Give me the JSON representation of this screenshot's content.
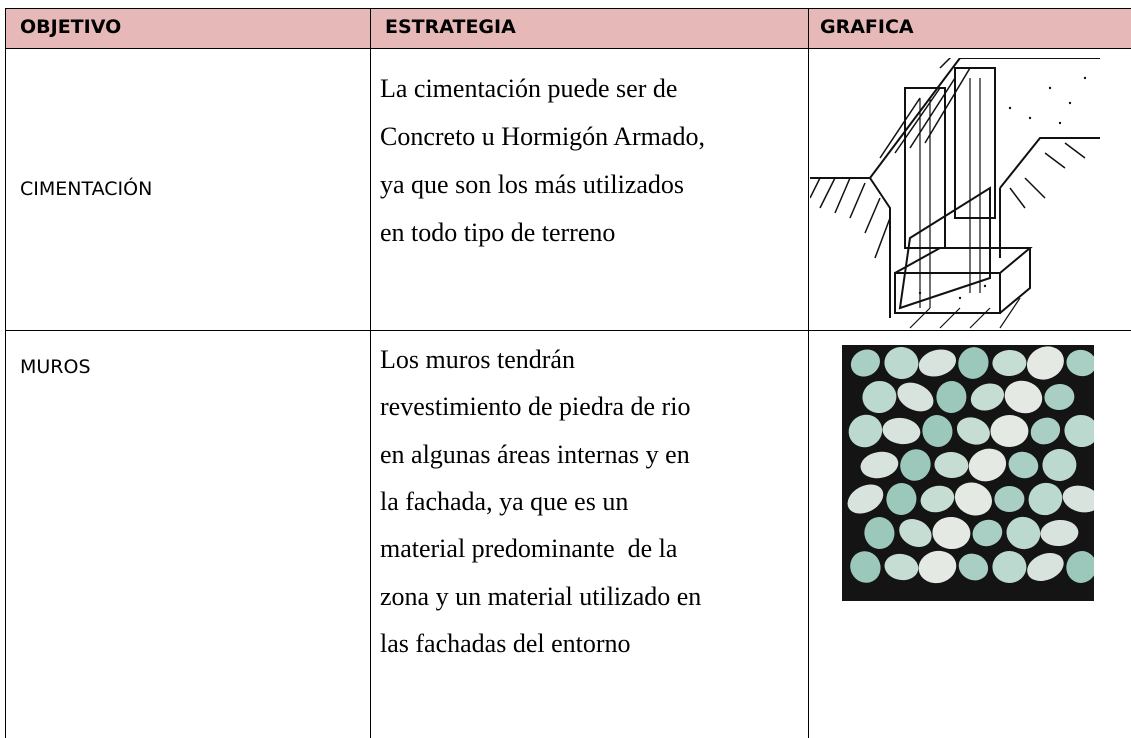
{
  "table": {
    "header": [
      "OBJETIVO",
      "ESTRATEGIA",
      "GRAFICA"
    ],
    "rows": [
      {
        "objective": "CIMENTACIÓN",
        "strategy": [
          "La cimentación puede ser de",
          "Concreto u Hormigón Armado,",
          "ya que son los más utilizados",
          "en todo tipo de terreno"
        ]
      },
      {
        "objective": "MUROS",
        "strategy": [
          "Los muros tendrán",
          "revestimiento de piedra de rio",
          "en algunas áreas internas y en",
          "la fachada, ya que es un",
          "material predominante  de la",
          "zona y un material utilizado en",
          "las fachadas del entorno"
        ]
      }
    ]
  }
}
